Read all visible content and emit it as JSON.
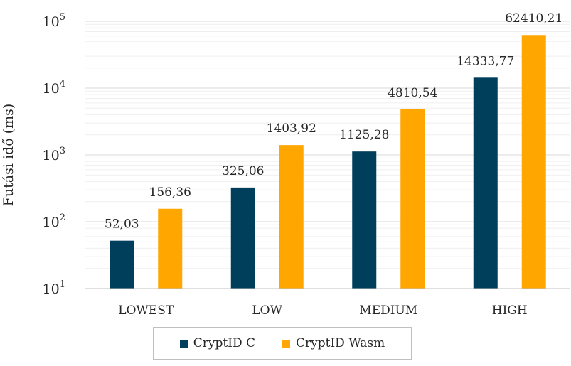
{
  "chart_data": {
    "type": "bar",
    "ylabel": "Futási idő (ms)",
    "yscale": "log",
    "ylim": [
      10,
      100000
    ],
    "y_ticks": [
      {
        "base": "10",
        "exp": "1",
        "value": 10
      },
      {
        "base": "10",
        "exp": "2",
        "value": 100
      },
      {
        "base": "10",
        "exp": "3",
        "value": 1000
      },
      {
        "base": "10",
        "exp": "4",
        "value": 10000
      },
      {
        "base": "10",
        "exp": "5",
        "value": 100000
      }
    ],
    "grid": true,
    "categories": [
      "LOWEST",
      "LOW",
      "MEDIUM",
      "HIGH"
    ],
    "series": [
      {
        "name": "CryptID C",
        "color": "#003f5c",
        "values": [
          52.03,
          325.06,
          1125.28,
          14333.77
        ],
        "labels": [
          "52,03",
          "325,06",
          "1125,28",
          "14333,77"
        ]
      },
      {
        "name": "CryptID Wasm",
        "color": "#ffa600",
        "values": [
          156.36,
          1403.92,
          4810.54,
          62410.21
        ],
        "labels": [
          "156,36",
          "1403,92",
          "4810,54",
          "62410,21"
        ]
      }
    ],
    "legend_position": "bottom"
  }
}
